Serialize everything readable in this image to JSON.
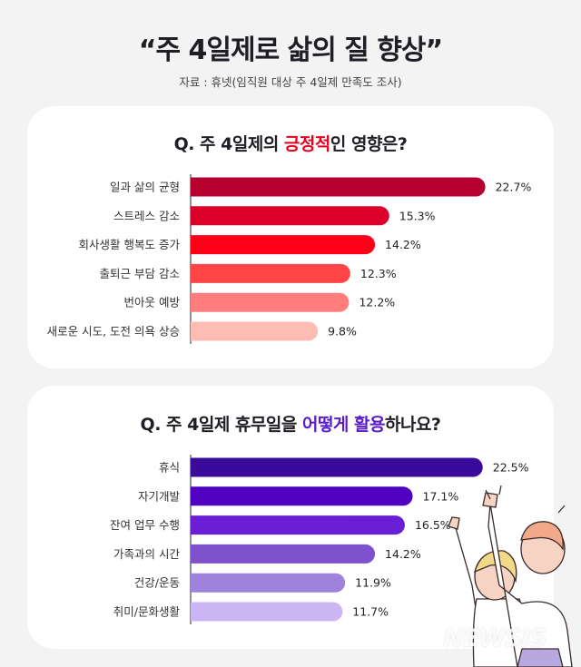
{
  "header": {
    "title": "“주 4일제로 삶의 질 향상”",
    "source": "자료 : 휴넷(임직원 대상 주 4일제 만족도 조사)"
  },
  "chart_data": [
    {
      "type": "bar",
      "orientation": "horizontal",
      "title_parts": [
        "Q. 주 4일제의 ",
        "긍정적",
        "인 영향은?"
      ],
      "highlight_color": "#e8001e",
      "categories": [
        "일과 삶의 균형",
        "스트레스 감소",
        "회사생활 행복도 증가",
        "출퇴근 부담 감소",
        "번아웃 예방",
        "새로운 시도, 도전 의욕 상승"
      ],
      "values": [
        22.7,
        15.3,
        14.2,
        12.3,
        12.2,
        9.8
      ],
      "labels": [
        "22.7%",
        "15.3%",
        "14.2%",
        "12.3%",
        "12.2%",
        "9.8%"
      ],
      "colors": [
        "#b5002f",
        "#db0029",
        "#ff0019",
        "#ff4545",
        "#ff7d7d",
        "#ffbcb4"
      ],
      "unit": "%"
    },
    {
      "type": "bar",
      "orientation": "horizontal",
      "title_parts": [
        "Q. 주 4일제 휴무일을 ",
        "어떻게 활용",
        "하나요?"
      ],
      "highlight_color": "#5a1ccc",
      "categories": [
        "휴식",
        "자기개발",
        "잔여 업무 수행",
        "가족과의 시간",
        "건강/운동",
        "취미/문화생활"
      ],
      "values": [
        22.5,
        17.1,
        16.5,
        14.2,
        11.9,
        11.7
      ],
      "labels": [
        "22.5%",
        "17.1%",
        "16.5%",
        "14.2%",
        "11.9%",
        "11.7%"
      ],
      "colors": [
        "#3a0a9a",
        "#5000c0",
        "#6a1fd6",
        "#7d52cc",
        "#9e82dc",
        "#cbb5f2"
      ],
      "unit": "%"
    }
  ],
  "watermark": "NEWSIS"
}
